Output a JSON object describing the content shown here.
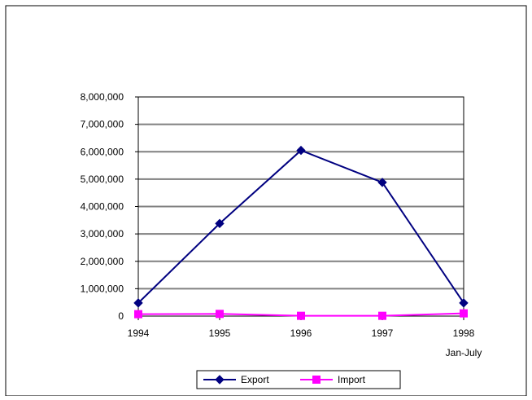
{
  "chart_data": {
    "type": "line",
    "categories": [
      "1994",
      "1995",
      "1996",
      "1997",
      "1998"
    ],
    "category_sublabels": [
      "",
      "",
      "",
      "",
      "Jan-July"
    ],
    "ylim": [
      0,
      8000000
    ],
    "yticks": [
      0,
      1000000,
      2000000,
      3000000,
      4000000,
      5000000,
      6000000,
      7000000,
      8000000
    ],
    "ytick_labels": [
      "0",
      "1,000,000",
      "2,000,000",
      "3,000,000",
      "4,000,000",
      "5,000,000",
      "6,000,000",
      "7,000,000",
      "8,000,000"
    ],
    "series": [
      {
        "name": "Export",
        "values": [
          480000,
          3380000,
          6050000,
          4880000,
          480000
        ],
        "color": "#000080",
        "marker": "diamond"
      },
      {
        "name": "Import",
        "values": [
          70000,
          80000,
          10000,
          10000,
          100000
        ],
        "color": "#ff00ff",
        "marker": "square"
      }
    ],
    "grid": true,
    "legend_position": "bottom"
  }
}
